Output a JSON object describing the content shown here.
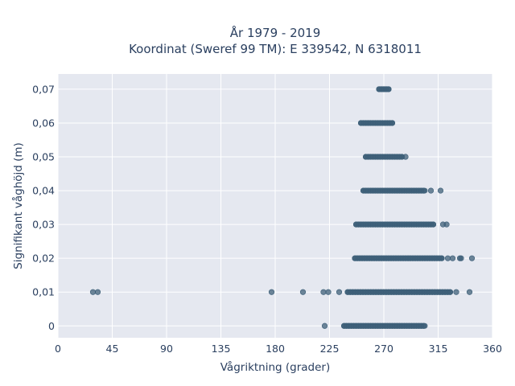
{
  "chart_data": {
    "type": "scatter",
    "title_lines": [
      "År 1979 - 2019",
      "Koordinat (Sweref 99 TM): E 339542, N 6318011"
    ],
    "xlabel": "Vågriktning (grader)",
    "ylabel": "Signifikant våghöjd (m)",
    "xlim": [
      0,
      360
    ],
    "ylim": [
      -0.0035,
      0.0745
    ],
    "x_ticks": [
      0,
      45,
      90,
      135,
      180,
      225,
      270,
      315,
      360
    ],
    "x_tick_labels": [
      "0",
      "45",
      "90",
      "135",
      "180",
      "225",
      "270",
      "315",
      "360"
    ],
    "y_ticks": [
      0,
      0.01,
      0.02,
      0.03,
      0.04,
      0.05,
      0.06,
      0.07
    ],
    "y_tick_labels": [
      "0",
      "0,01",
      "0,02",
      "0,03",
      "0,04",
      "0,05",
      "0,06",
      "0,07"
    ],
    "grid": true,
    "colors": {
      "marker": "#3d5f78",
      "plot_bg": "#e5e8f0",
      "grid": "#ffffff",
      "text": "#2a3f5f"
    },
    "levels": [
      {
        "y": 0,
        "x_min": 237,
        "x_max": 304,
        "outliers": [
          221
        ]
      },
      {
        "y": 0.01,
        "x_min": 240,
        "x_max": 325,
        "outliers": [
          29,
          33,
          177,
          203,
          220,
          224,
          233,
          330,
          341
        ]
      },
      {
        "y": 0.02,
        "x_min": 246,
        "x_max": 318,
        "outliers": [
          323,
          327,
          333,
          334,
          343
        ]
      },
      {
        "y": 0.03,
        "x_min": 247,
        "x_max": 311,
        "outliers": [
          319,
          322
        ]
      },
      {
        "y": 0.04,
        "x_min": 253,
        "x_max": 304,
        "outliers": [
          309,
          317
        ]
      },
      {
        "y": 0.05,
        "x_min": 255,
        "x_max": 285,
        "outliers": [
          288
        ]
      },
      {
        "y": 0.06,
        "x_min": 251,
        "x_max": 277,
        "outliers": []
      },
      {
        "y": 0.07,
        "x_min": 266,
        "x_max": 274,
        "outliers": []
      }
    ]
  }
}
